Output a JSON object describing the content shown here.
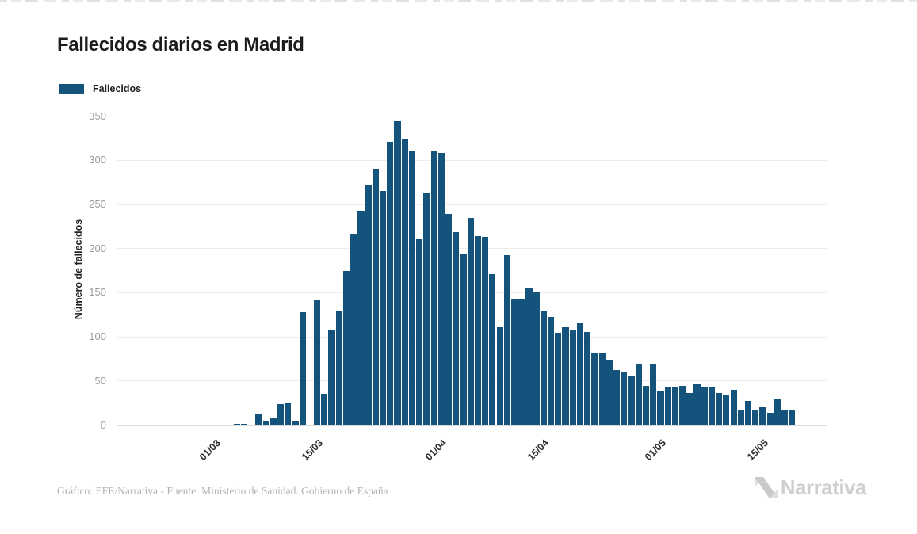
{
  "title": "Fallecidos diarios en Madrid",
  "legend": {
    "label": "Fallecidos"
  },
  "footer": {
    "credit": "Gráfico: EFE/Narrativa - Fuente: Ministerio de Sanidad. Gobierno de España",
    "brand": "Narrativa"
  },
  "colors": {
    "bar": "#14537C",
    "faint_bar": "#C2D4E0",
    "grid": "#EDEDED",
    "axis": "#DCDCDC",
    "ytick_text": "#9D9D9D",
    "xtick_text": "#2F2F2F",
    "title_text": "#1C1C1C",
    "credit_text": "#B3B3B3",
    "brand_text": "#CFCFCF"
  },
  "chart_data": {
    "type": "bar",
    "title": "Fallecidos diarios en Madrid",
    "series_name": "Fallecidos",
    "xlabel": "",
    "ylabel": "Número de fallecidos",
    "ylim": [
      0,
      350
    ],
    "yticks": [
      0,
      50,
      100,
      150,
      200,
      250,
      300,
      350
    ],
    "grid": true,
    "legend_position": "top-left",
    "xtick_labels": [
      "01/03",
      "15/03",
      "01/04",
      "15/04",
      "01/05",
      "15/05"
    ],
    "xtick_indices": [
      9,
      23,
      40,
      54,
      70,
      84
    ],
    "categories": [
      "21/02",
      "22/02",
      "23/02",
      "24/02",
      "25/02",
      "26/02",
      "27/02",
      "28/02",
      "29/02",
      "01/03",
      "02/03",
      "03/03",
      "04/03",
      "05/03",
      "06/03",
      "07/03",
      "08/03",
      "09/03",
      "10/03",
      "11/03",
      "12/03",
      "13/03",
      "14/03",
      "15/03",
      "16/03",
      "17/03",
      "18/03",
      "19/03",
      "20/03",
      "21/03",
      "22/03",
      "23/03",
      "24/03",
      "25/03",
      "26/03",
      "27/03",
      "28/03",
      "29/03",
      "30/03",
      "31/03",
      "01/04",
      "02/04",
      "03/04",
      "04/04",
      "05/04",
      "06/04",
      "07/04",
      "08/04",
      "09/04",
      "10/04",
      "11/04",
      "12/04",
      "13/04",
      "14/04",
      "15/04",
      "16/04",
      "17/04",
      "18/04",
      "19/04",
      "20/04",
      "21/04",
      "22/04",
      "23/04",
      "24/04",
      "25/04",
      "26/04",
      "27/04",
      "28/04",
      "29/04",
      "30/04",
      "01/05",
      "02/05",
      "03/05",
      "04/05",
      "05/05",
      "06/05",
      "07/05",
      "08/05",
      "09/05",
      "10/05",
      "11/05",
      "12/05",
      "13/05",
      "14/05",
      "15/05",
      "16/05",
      "17/05",
      "18/05",
      "19/05"
    ],
    "values": [
      1,
      1,
      1,
      1,
      1,
      1,
      1,
      1,
      1,
      1,
      1,
      1,
      2,
      2,
      1,
      13,
      5,
      9,
      24,
      25,
      5,
      128,
      0,
      142,
      36,
      108,
      129,
      175,
      217,
      243,
      272,
      291,
      266,
      322,
      345,
      325,
      311,
      211,
      263,
      311,
      309,
      240,
      219,
      195,
      235,
      215,
      214,
      172,
      111,
      193,
      144,
      144,
      155,
      152,
      129,
      123,
      105,
      111,
      108,
      116,
      106,
      82,
      83,
      74,
      63,
      61,
      57,
      70,
      45,
      70,
      39,
      43,
      43,
      45,
      37,
      47,
      44,
      44,
      37,
      35,
      40,
      17,
      28,
      17,
      21,
      14,
      30,
      17,
      18
    ]
  }
}
